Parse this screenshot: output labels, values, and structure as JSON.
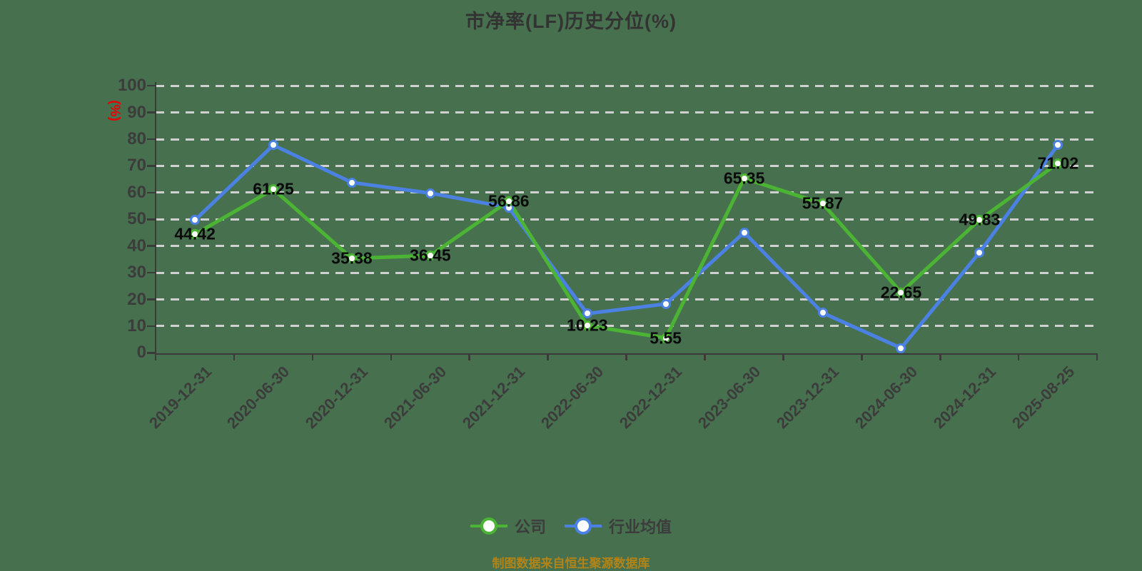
{
  "title": "市净率(LF)历史分位(%)",
  "footer": "制图数据来自恒生聚源数据库",
  "colors": {
    "background": "#47714E",
    "grid": "#D0D0D0",
    "axis": "#3A3A3A",
    "tick_label": "#3C3C3C",
    "data_label": "#0A0A0A",
    "title": "#333333",
    "y_unit": "#E60000",
    "footer": "#B28418"
  },
  "chart_data": {
    "type": "line",
    "title": "市净率(LF)历史分位(%)",
    "y_unit": "(%)",
    "xlabel": "",
    "ylabel": "(%)",
    "ylim": [
      0,
      100
    ],
    "y_ticks": [
      0,
      10,
      20,
      30,
      40,
      50,
      60,
      70,
      80,
      90,
      100
    ],
    "grid": "dashed-horizontal",
    "legend_position": "bottom",
    "categories": [
      "2019-12-31",
      "2020-06-30",
      "2020-12-31",
      "2021-06-30",
      "2021-12-31",
      "2022-06-30",
      "2022-12-31",
      "2023-06-30",
      "2023-12-31",
      "2024-06-30",
      "2024-12-31",
      "2025-08-25"
    ],
    "series": [
      {
        "name": "公司",
        "key": "company",
        "color": "#4CB434",
        "show_value_labels": true,
        "values": [
          44.42,
          61.25,
          35.38,
          36.45,
          56.86,
          10.23,
          5.55,
          65.35,
          55.87,
          22.65,
          49.83,
          71.02
        ]
      },
      {
        "name": "行业均值",
        "key": "industry-average",
        "color": "#4C81E4",
        "show_value_labels": false,
        "values": [
          49.7,
          77.8,
          63.8,
          59.8,
          54.4,
          14.7,
          18.3,
          45.1,
          15.0,
          1.8,
          37.6,
          77.9
        ]
      }
    ]
  }
}
